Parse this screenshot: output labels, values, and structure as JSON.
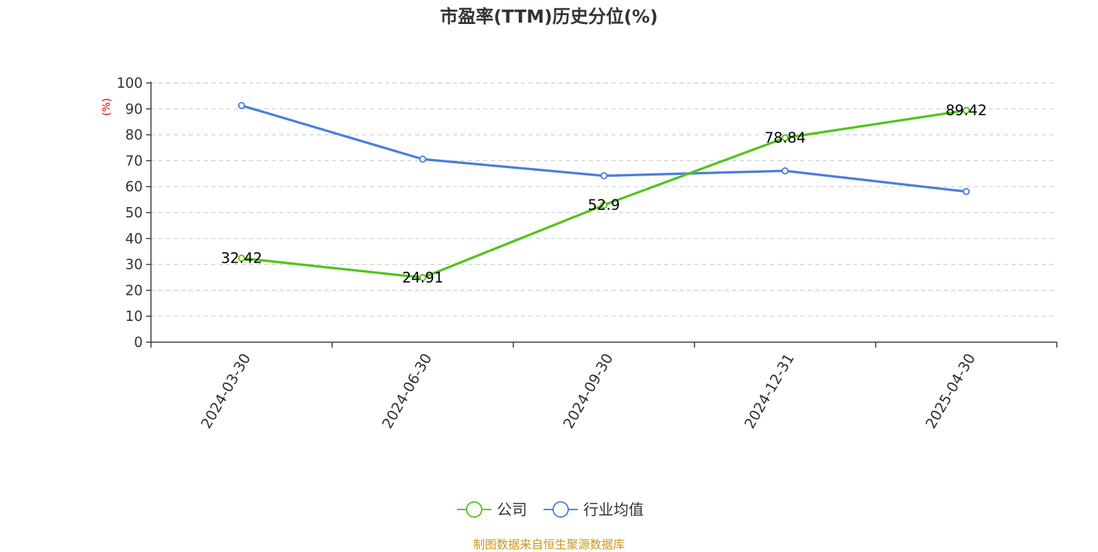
{
  "chart_data": {
    "type": "line",
    "title": "市盈率(TTM)历史分位(%)",
    "ylabel": "(%)",
    "xlabel": "",
    "x": [
      "2024-03-30",
      "2024-06-30",
      "2024-09-30",
      "2024-12-31",
      "2025-04-30"
    ],
    "ylim": [
      0,
      100
    ],
    "yticks": [
      0,
      10,
      20,
      30,
      40,
      50,
      60,
      70,
      80,
      90,
      100
    ],
    "grid": true,
    "legend_position": "bottom",
    "series": [
      {
        "name": "公司",
        "color": "#52c41a",
        "values": [
          32.42,
          24.91,
          52.9,
          78.84,
          89.42
        ],
        "labels": [
          "32.42",
          "24.91",
          "52.9",
          "78.84",
          "89.42"
        ]
      },
      {
        "name": "行业均值",
        "color": "#4a7fdc",
        "values": [
          91.3,
          70.6,
          64.2,
          66.1,
          58.1
        ]
      }
    ]
  },
  "colors": {
    "ylabel": "#e00000",
    "source": "#c8961e"
  },
  "source_note": "制图数据来自恒生聚源数据库"
}
